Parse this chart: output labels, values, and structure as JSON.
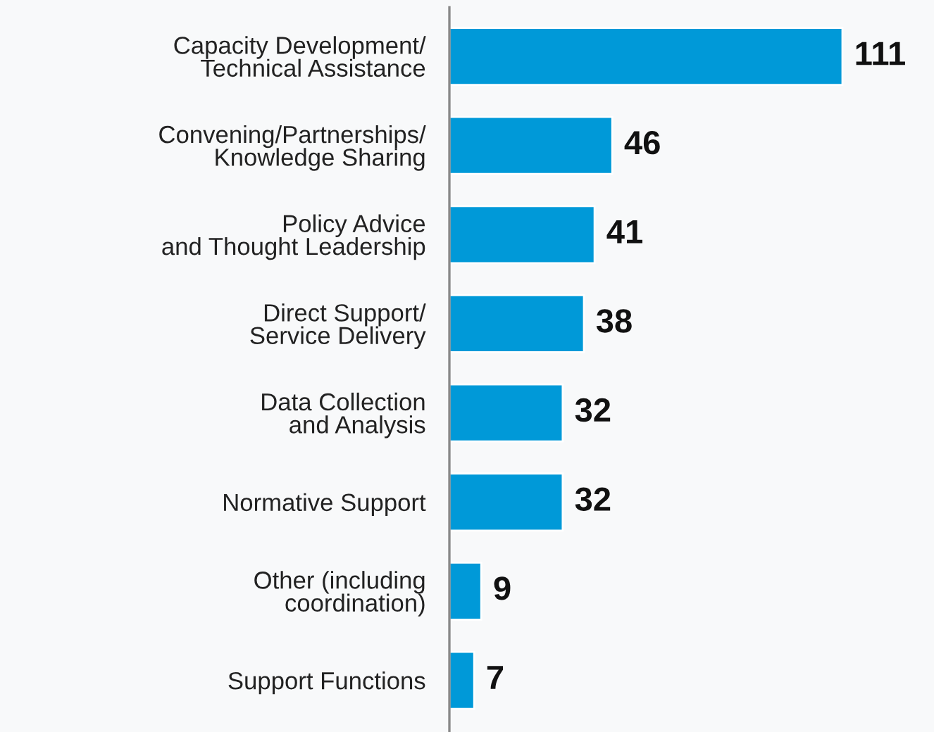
{
  "chart_data": {
    "type": "bar",
    "orientation": "horizontal",
    "categories": [
      "Capacity Development/\nTechnical Assistance",
      "Convening/Partnerships/\nKnowledge Sharing",
      "Policy Advice\nand Thought Leadership",
      "Direct Support/\nService Delivery",
      "Data Collection\nand Analysis",
      "Normative Support",
      "Other (including\ncoordination)",
      "Support Functions"
    ],
    "values": [
      111,
      46,
      41,
      38,
      32,
      32,
      9,
      7
    ],
    "color": "#0099d8",
    "data_labels": true,
    "grid": false,
    "legend": false
  }
}
